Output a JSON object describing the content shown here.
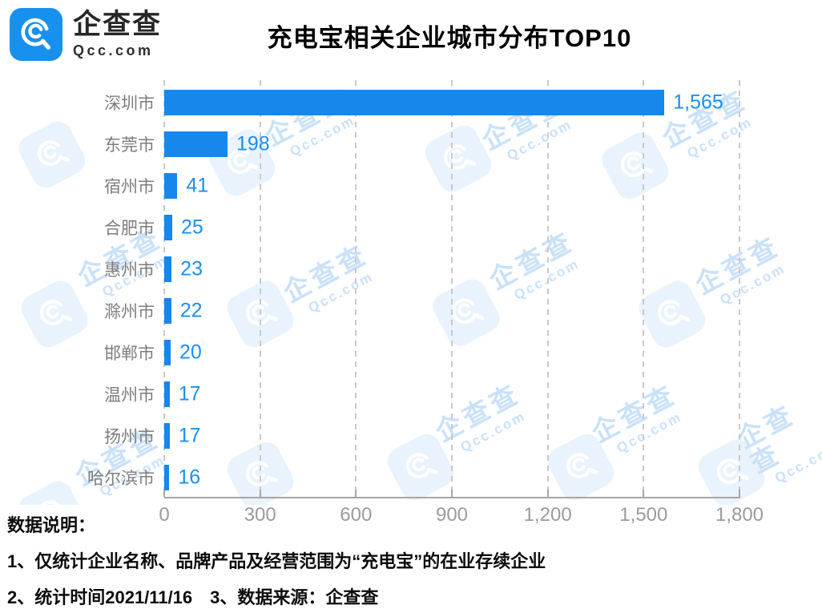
{
  "brand": {
    "name": "企查查",
    "domain": "Qcc.com"
  },
  "title": "充电宝相关企业城市分布TOP10",
  "chart_data": {
    "type": "bar",
    "orientation": "horizontal",
    "title": "充电宝相关企业城市分布TOP10",
    "categories": [
      "深圳市",
      "东莞市",
      "宿州市",
      "合肥市",
      "惠州市",
      "滁州市",
      "邯郸市",
      "温州市",
      "扬州市",
      "哈尔滨市"
    ],
    "values": [
      1565,
      198,
      41,
      25,
      23,
      22,
      20,
      17,
      17,
      16
    ],
    "value_labels": [
      "1,565",
      "198",
      "41",
      "25",
      "23",
      "22",
      "20",
      "17",
      "17",
      "16"
    ],
    "xlim": [
      0,
      1800
    ],
    "x_ticks": [
      0,
      300,
      600,
      900,
      1200,
      1500,
      1800
    ],
    "x_tick_labels": [
      "0",
      "300",
      "600",
      "900",
      "1,200",
      "1,500",
      "1,800"
    ],
    "grid": "dashed-vertical",
    "legend": "none"
  },
  "watermark": {
    "text": "企查查",
    "subtext": "Qcc.com"
  },
  "notes": {
    "heading": "数据说明：",
    "line1": "1、仅统计企业名称、品牌产品及经营范围为“充电宝”的在业存续企业",
    "line2": "2、统计时间2021/11/16　3、数据来源：企查查"
  },
  "colors": {
    "brand": "#1890ee",
    "bar": "#1787ec",
    "value": "#1b8ff2",
    "label": "#7d7d7d",
    "tick": "#9b9b9b",
    "grid": "#c9c9c9",
    "axis": "#a6a6a6",
    "wm": "#c9e1fa",
    "wm_bg": "#e9f3fd"
  }
}
